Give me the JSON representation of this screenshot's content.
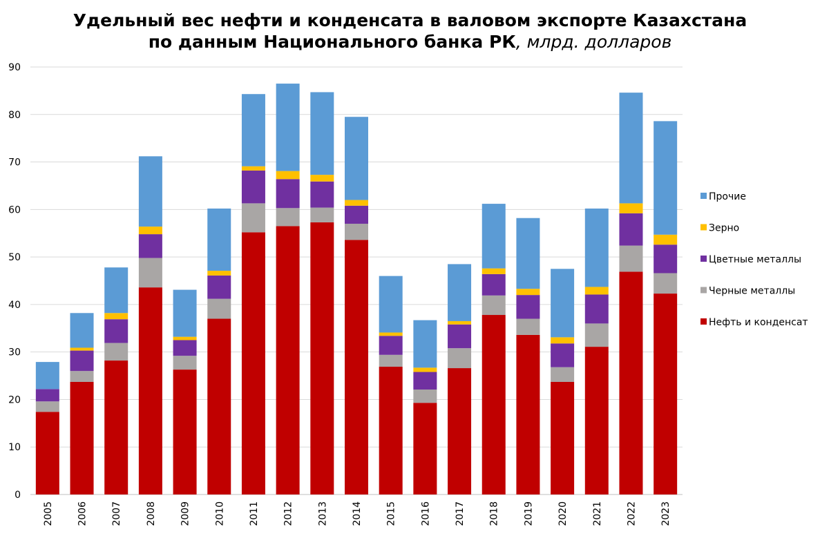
{
  "chart_data": {
    "type": "bar",
    "stacked": true,
    "title_line1": "Удельный вес нефти и конденсата в валовом экспорте Казахстана",
    "title_line2_bold": "по данным Национального банка РК",
    "title_line2_italic": ", млрд. долларов",
    "ylim": [
      0,
      90
    ],
    "yticks": [
      0,
      10,
      20,
      30,
      40,
      50,
      60,
      70,
      80,
      90
    ],
    "grid": true,
    "legend_position": "right",
    "categories": [
      "2005",
      "2006",
      "2007",
      "2008",
      "2009",
      "2010",
      "2011",
      "2012",
      "2013",
      "2014",
      "2015",
      "2016",
      "2017",
      "2018",
      "2019",
      "2020",
      "2021",
      "2022",
      "2023"
    ],
    "series": [
      {
        "name": "Нефть и конденсат",
        "color": "#C00000",
        "values": [
          17.4,
          23.7,
          28.2,
          43.6,
          26.3,
          37.0,
          55.2,
          56.5,
          57.3,
          53.6,
          26.9,
          19.3,
          26.6,
          37.8,
          33.6,
          23.7,
          31.1,
          46.9,
          42.3
        ]
      },
      {
        "name": "Черные металлы",
        "color": "#A9A6A5",
        "values": [
          2.2,
          2.3,
          3.7,
          6.2,
          2.9,
          4.2,
          6.1,
          3.8,
          3.1,
          3.4,
          2.5,
          2.8,
          4.2,
          4.1,
          3.4,
          3.1,
          4.9,
          5.5,
          4.3
        ]
      },
      {
        "name": "Цветные металлы",
        "color": "#7030A0",
        "values": [
          2.6,
          4.3,
          5.0,
          5.0,
          3.3,
          4.9,
          6.9,
          6.1,
          5.5,
          3.8,
          4.0,
          3.7,
          5.0,
          4.5,
          5.0,
          5.0,
          6.1,
          6.8,
          6.0
        ]
      },
      {
        "name": "Зерно",
        "color": "#FFC000",
        "values": [
          0.0,
          0.6,
          1.3,
          1.6,
          0.7,
          1.0,
          0.9,
          1.7,
          1.4,
          1.2,
          0.7,
          0.9,
          0.7,
          1.2,
          1.3,
          1.3,
          1.6,
          2.1,
          2.1
        ]
      },
      {
        "name": "Прочие",
        "color": "#5B9BD5",
        "values": [
          5.7,
          7.3,
          9.6,
          14.8,
          9.9,
          13.1,
          15.2,
          18.4,
          17.4,
          17.5,
          11.9,
          10.0,
          12.0,
          13.6,
          14.9,
          14.4,
          16.5,
          23.3,
          23.9
        ]
      }
    ]
  }
}
